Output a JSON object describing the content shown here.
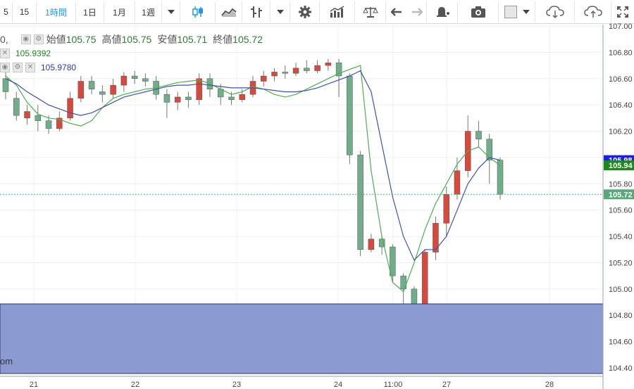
{
  "toolbar": {
    "items": [
      {
        "label": "5",
        "name": "interval-5"
      },
      {
        "label": "15",
        "name": "interval-15"
      },
      {
        "label": "1時間",
        "name": "interval-1h",
        "active": true
      },
      {
        "label": "1日",
        "name": "interval-1d"
      },
      {
        "label": "1月",
        "name": "interval-1m"
      },
      {
        "label": "1週",
        "name": "interval-1w"
      }
    ]
  },
  "legend": {
    "ohlc": {
      "prefix": "0,",
      "open_label": "始値",
      "open": "105.75",
      "high_label": "高値",
      "high": "105.75",
      "low_label": "安値",
      "low": "105.71",
      "close_label": "終値",
      "close": "105.72"
    },
    "ma_fast": "105.9392",
    "ma_slow": "105.9780"
  },
  "price_axis": {
    "ticks": [
      "107.00",
      "106.80",
      "106.60",
      "106.40",
      "106.20",
      "106.00",
      "105.80",
      "105.60",
      "105.40",
      "105.20",
      "105.00",
      "104.80",
      "104.60",
      "104.40"
    ],
    "badges": [
      {
        "value": "105.98",
        "color": "#1a1aff"
      },
      {
        "value": "105.94",
        "color": "#1b8a1b"
      },
      {
        "value": "105.72",
        "color": "#5aa87a"
      }
    ]
  },
  "time_axis": {
    "ticks": [
      "21",
      "22",
      "23",
      "24",
      "11:00",
      "27",
      "28"
    ]
  },
  "watermark": "om",
  "colors": {
    "up": "#d7493b",
    "down": "#6fae89",
    "ma_fast": "#4caf50",
    "ma_slow": "#3f51b5",
    "volume_panel": "#8b9bd1"
  },
  "chart_data": {
    "type": "candlestick",
    "ylim": [
      104.35,
      107.05
    ],
    "series": [
      {
        "name": "105.9392",
        "values": [
          106.62,
          106.55,
          106.42,
          106.33,
          106.3,
          106.29,
          106.26,
          106.24,
          106.28,
          106.38,
          106.45,
          106.48,
          106.5,
          106.52,
          106.53,
          106.55,
          106.57,
          106.58,
          106.59,
          106.56,
          106.52,
          106.48,
          106.5,
          106.54,
          106.52,
          106.48,
          106.46,
          106.48,
          106.52,
          106.56,
          106.6,
          106.64,
          106.67,
          106.7,
          105.9,
          105.4,
          105.05,
          104.98,
          105.2,
          105.45,
          105.65,
          105.8,
          105.95,
          106.05,
          106.08,
          106.0,
          105.94
        ]
      },
      {
        "name": "105.9780",
        "values": [
          106.6,
          106.56,
          106.5,
          106.45,
          106.4,
          106.37,
          106.34,
          106.32,
          106.34,
          106.38,
          106.42,
          106.46,
          106.48,
          106.5,
          106.52,
          106.54,
          106.55,
          106.55,
          106.56,
          106.55,
          106.54,
          106.53,
          106.53,
          106.53,
          106.52,
          106.51,
          106.5,
          106.5,
          106.51,
          106.53,
          106.56,
          106.59,
          106.62,
          106.66,
          106.5,
          106.1,
          105.7,
          105.4,
          105.22,
          105.3,
          105.3,
          105.4,
          105.6,
          105.8,
          105.92,
          106.0,
          105.98
        ]
      }
    ],
    "candles": [
      [
        106.6,
        106.5,
        106.65,
        106.44
      ],
      [
        106.45,
        106.32,
        106.5,
        106.28
      ],
      [
        106.3,
        106.35,
        106.4,
        106.25
      ],
      [
        106.32,
        106.28,
        106.4,
        106.2
      ],
      [
        106.28,
        106.22,
        106.32,
        106.18
      ],
      [
        106.22,
        106.3,
        106.35,
        106.2
      ],
      [
        106.3,
        106.45,
        106.5,
        106.28
      ],
      [
        106.45,
        106.58,
        106.62,
        106.42
      ],
      [
        106.58,
        106.52,
        106.62,
        106.48
      ],
      [
        106.5,
        106.48,
        106.55,
        106.42
      ],
      [
        106.48,
        106.55,
        106.6,
        106.45
      ],
      [
        106.55,
        106.62,
        106.65,
        106.5
      ],
      [
        106.62,
        106.6,
        106.66,
        106.56
      ],
      [
        106.6,
        106.58,
        106.64,
        106.54
      ],
      [
        106.58,
        106.48,
        106.62,
        106.44
      ],
      [
        106.48,
        106.42,
        106.52,
        106.3
      ],
      [
        106.42,
        106.46,
        106.5,
        106.36
      ],
      [
        106.46,
        106.44,
        106.5,
        106.38
      ],
      [
        106.44,
        106.6,
        106.64,
        106.4
      ],
      [
        106.6,
        106.52,
        106.64,
        106.46
      ],
      [
        106.52,
        106.46,
        106.56,
        106.4
      ],
      [
        106.46,
        106.44,
        106.5,
        106.4
      ],
      [
        106.44,
        106.48,
        106.52,
        106.42
      ],
      [
        106.48,
        106.58,
        106.62,
        106.46
      ],
      [
        106.58,
        106.62,
        106.66,
        106.54
      ],
      [
        106.62,
        106.65,
        106.68,
        106.58
      ],
      [
        106.65,
        106.64,
        106.7,
        106.6
      ],
      [
        106.64,
        106.68,
        106.72,
        106.62
      ],
      [
        106.68,
        106.66,
        106.74,
        106.64
      ],
      [
        106.66,
        106.7,
        106.74,
        106.64
      ],
      [
        106.7,
        106.72,
        106.75,
        106.66
      ],
      [
        106.72,
        106.62,
        106.75,
        106.46
      ],
      [
        106.62,
        106.02,
        106.64,
        105.95
      ],
      [
        106.02,
        105.3,
        106.05,
        105.25
      ],
      [
        105.3,
        105.38,
        105.42,
        105.28
      ],
      [
        105.38,
        105.32,
        105.4,
        105.26
      ],
      [
        105.32,
        105.1,
        105.34,
        105.05
      ],
      [
        105.1,
        105.0,
        105.12,
        104.86
      ],
      [
        105.0,
        104.82,
        105.02,
        104.46
      ],
      [
        104.82,
        105.28,
        105.3,
        104.8
      ],
      [
        105.28,
        105.5,
        105.55,
        105.22
      ],
      [
        105.5,
        105.72,
        105.78,
        105.4
      ],
      [
        105.72,
        105.9,
        106.0,
        105.68
      ],
      [
        105.9,
        106.2,
        106.32,
        105.85
      ],
      [
        106.2,
        106.14,
        106.28,
        106.08
      ],
      [
        106.14,
        105.98,
        106.18,
        105.8
      ],
      [
        105.98,
        105.72,
        106.0,
        105.68
      ]
    ],
    "ylabel": "",
    "xlabel": ""
  }
}
